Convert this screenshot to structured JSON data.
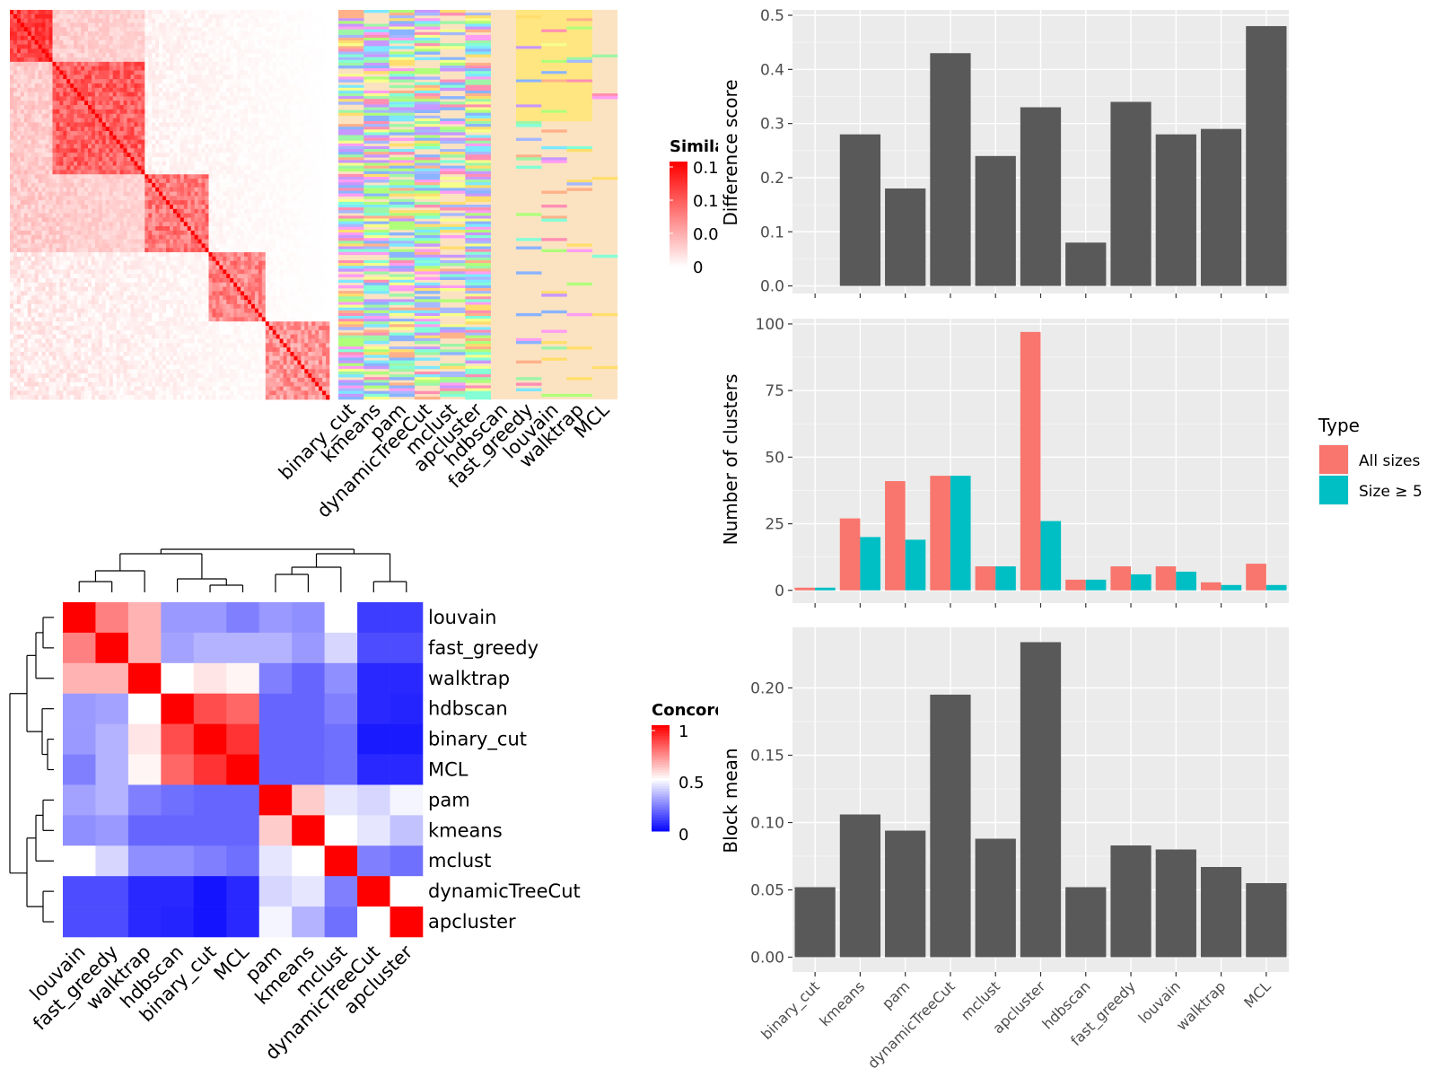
{
  "chart_data": [
    {
      "type": "heatmap",
      "panel": "similarity-heatmap-with-cluster-annotations",
      "legend_title": "Simila",
      "legend_ticks": [
        "0.1",
        "0.1",
        "0.0",
        "0"
      ],
      "annotation_columns": [
        "binary_cut",
        "kmeans",
        "pam",
        "dynamicTreeCut",
        "mclust",
        "apcluster",
        "hdbscan",
        "fast_greedy",
        "louvain",
        "walktrap",
        "MCL"
      ],
      "colors": {
        "high": "#ff0000",
        "low": "#ffffff",
        "annotation_background": "#fbe3c2"
      }
    },
    {
      "type": "heatmap",
      "panel": "concordance-heatmap",
      "legend_title": "Concord",
      "legend_ticks": [
        "1",
        "0.5",
        "0"
      ],
      "rows": [
        "louvain",
        "fast_greedy",
        "walktrap",
        "hdbscan",
        "binary_cut",
        "MCL",
        "pam",
        "kmeans",
        "mclust",
        "dynamicTreeCut",
        "apcluster"
      ],
      "columns": [
        "louvain",
        "fast_greedy",
        "walktrap",
        "hdbscan",
        "binary_cut",
        "MCL",
        "pam",
        "kmeans",
        "mclust",
        "dynamicTreeCut",
        "apcluster"
      ],
      "values": [
        [
          1.0,
          0.75,
          0.65,
          0.3,
          0.3,
          0.25,
          0.3,
          0.28,
          0.5,
          0.12,
          0.12
        ],
        [
          0.75,
          1.0,
          0.65,
          0.32,
          0.35,
          0.35,
          0.35,
          0.3,
          0.42,
          0.15,
          0.15
        ],
        [
          0.65,
          0.65,
          1.0,
          0.5,
          0.55,
          0.52,
          0.25,
          0.2,
          0.28,
          0.08,
          0.08
        ],
        [
          0.3,
          0.32,
          0.5,
          1.0,
          0.85,
          0.8,
          0.2,
          0.2,
          0.25,
          0.08,
          0.07
        ],
        [
          0.3,
          0.35,
          0.55,
          0.85,
          1.0,
          0.9,
          0.2,
          0.2,
          0.22,
          0.05,
          0.05
        ],
        [
          0.25,
          0.35,
          0.52,
          0.8,
          0.9,
          1.0,
          0.2,
          0.2,
          0.22,
          0.08,
          0.08
        ],
        [
          0.32,
          0.35,
          0.25,
          0.22,
          0.2,
          0.2,
          1.0,
          0.6,
          0.45,
          0.42,
          0.48
        ],
        [
          0.28,
          0.3,
          0.2,
          0.2,
          0.2,
          0.2,
          0.6,
          1.0,
          0.5,
          0.45,
          0.38
        ],
        [
          0.5,
          0.42,
          0.28,
          0.28,
          0.25,
          0.22,
          0.45,
          0.5,
          1.0,
          0.25,
          0.22
        ],
        [
          0.15,
          0.15,
          0.08,
          0.08,
          0.04,
          0.08,
          0.42,
          0.45,
          0.25,
          1.0,
          0.5
        ],
        [
          0.15,
          0.15,
          0.08,
          0.07,
          0.04,
          0.08,
          0.48,
          0.35,
          0.22,
          0.5,
          1.0
        ]
      ],
      "colors": {
        "high": "#ff0000",
        "mid": "#ffffff",
        "low": "#0000ff"
      }
    },
    {
      "type": "bar",
      "panel": "difference-score",
      "categories": [
        "binary_cut",
        "kmeans",
        "pam",
        "dynamicTreeCut",
        "mclust",
        "apcluster",
        "hdbscan",
        "fast_greedy",
        "louvain",
        "walktrap",
        "MCL"
      ],
      "values": [
        0.0,
        0.28,
        0.18,
        0.43,
        0.24,
        0.33,
        0.08,
        0.34,
        0.28,
        0.29,
        0.48
      ],
      "ylabel": "Difference score",
      "ylim": [
        0,
        0.5
      ],
      "yticks": [
        "0.0",
        "0.1",
        "0.2",
        "0.3",
        "0.4",
        "0.5"
      ],
      "colors": {
        "bar": "#595959",
        "panel": "#ebebeb",
        "grid": "#ffffff"
      }
    },
    {
      "type": "bar",
      "panel": "number-of-clusters",
      "categories": [
        "binary_cut",
        "kmeans",
        "pam",
        "dynamicTreeCut",
        "mclust",
        "apcluster",
        "hdbscan",
        "fast_greedy",
        "louvain",
        "walktrap",
        "MCL"
      ],
      "series": [
        {
          "name": "All sizes",
          "color": "#f8766d",
          "values": [
            1,
            27,
            41,
            43,
            9,
            97,
            4,
            9,
            9,
            3,
            10
          ]
        },
        {
          "name": "Size ≥ 5",
          "color": "#00bfc4",
          "values": [
            1,
            20,
            19,
            43,
            9,
            26,
            4,
            6,
            7,
            2,
            2
          ]
        }
      ],
      "ylabel": "Number of clusters",
      "ylim": [
        0,
        100
      ],
      "yticks": [
        "0",
        "25",
        "50",
        "75",
        "100"
      ],
      "legend_title": "Type",
      "legend_position": "right"
    },
    {
      "type": "bar",
      "panel": "block-mean",
      "categories": [
        "binary_cut",
        "kmeans",
        "pam",
        "dynamicTreeCut",
        "mclust",
        "apcluster",
        "hdbscan",
        "fast_greedy",
        "louvain",
        "walktrap",
        "MCL"
      ],
      "values": [
        0.052,
        0.106,
        0.094,
        0.195,
        0.088,
        0.234,
        0.052,
        0.083,
        0.08,
        0.067,
        0.055
      ],
      "ylabel": "Block mean",
      "ylim": [
        0,
        0.24
      ],
      "yticks": [
        "0.00",
        "0.05",
        "0.10",
        "0.15",
        "0.20"
      ],
      "colors": {
        "bar": "#595959"
      }
    }
  ]
}
